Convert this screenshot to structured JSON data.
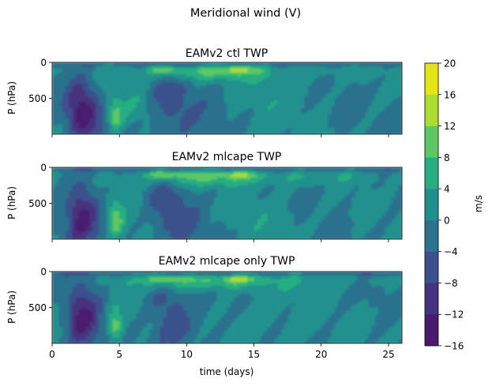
{
  "chart_data": {
    "type": "heatmap",
    "suptitle": "Meridional wind (V)",
    "panels": [
      {
        "title": "EAMv2 ctl TWP",
        "ylabel": "P (hPa)"
      },
      {
        "title": "EAMv2 mlcape TWP",
        "ylabel": "P (hPa)"
      },
      {
        "title": "EAMv2 mlcape only TWP",
        "ylabel": "P (hPa)"
      }
    ],
    "xlabel": "time (days)",
    "xlim": [
      0,
      26
    ],
    "xticks": [
      "0",
      "5",
      "10",
      "15",
      "20",
      "25"
    ],
    "ylim": [
      1000,
      0
    ],
    "yticks": [
      "0",
      "500"
    ],
    "colorbar": {
      "label": "m/s",
      "levels": [
        -16,
        -12,
        -8,
        -4,
        0,
        4,
        8,
        12,
        16,
        20
      ],
      "tick_labels": [
        "−16",
        "−12",
        "−8",
        "−4",
        "0",
        "4",
        "8",
        "12",
        "16",
        "20"
      ],
      "colors": [
        "#481b6d",
        "#46327e",
        "#3b518b",
        "#2c718e",
        "#21908d",
        "#27ad81",
        "#5cc863",
        "#aadc32",
        "#e4e419"
      ]
    }
  }
}
